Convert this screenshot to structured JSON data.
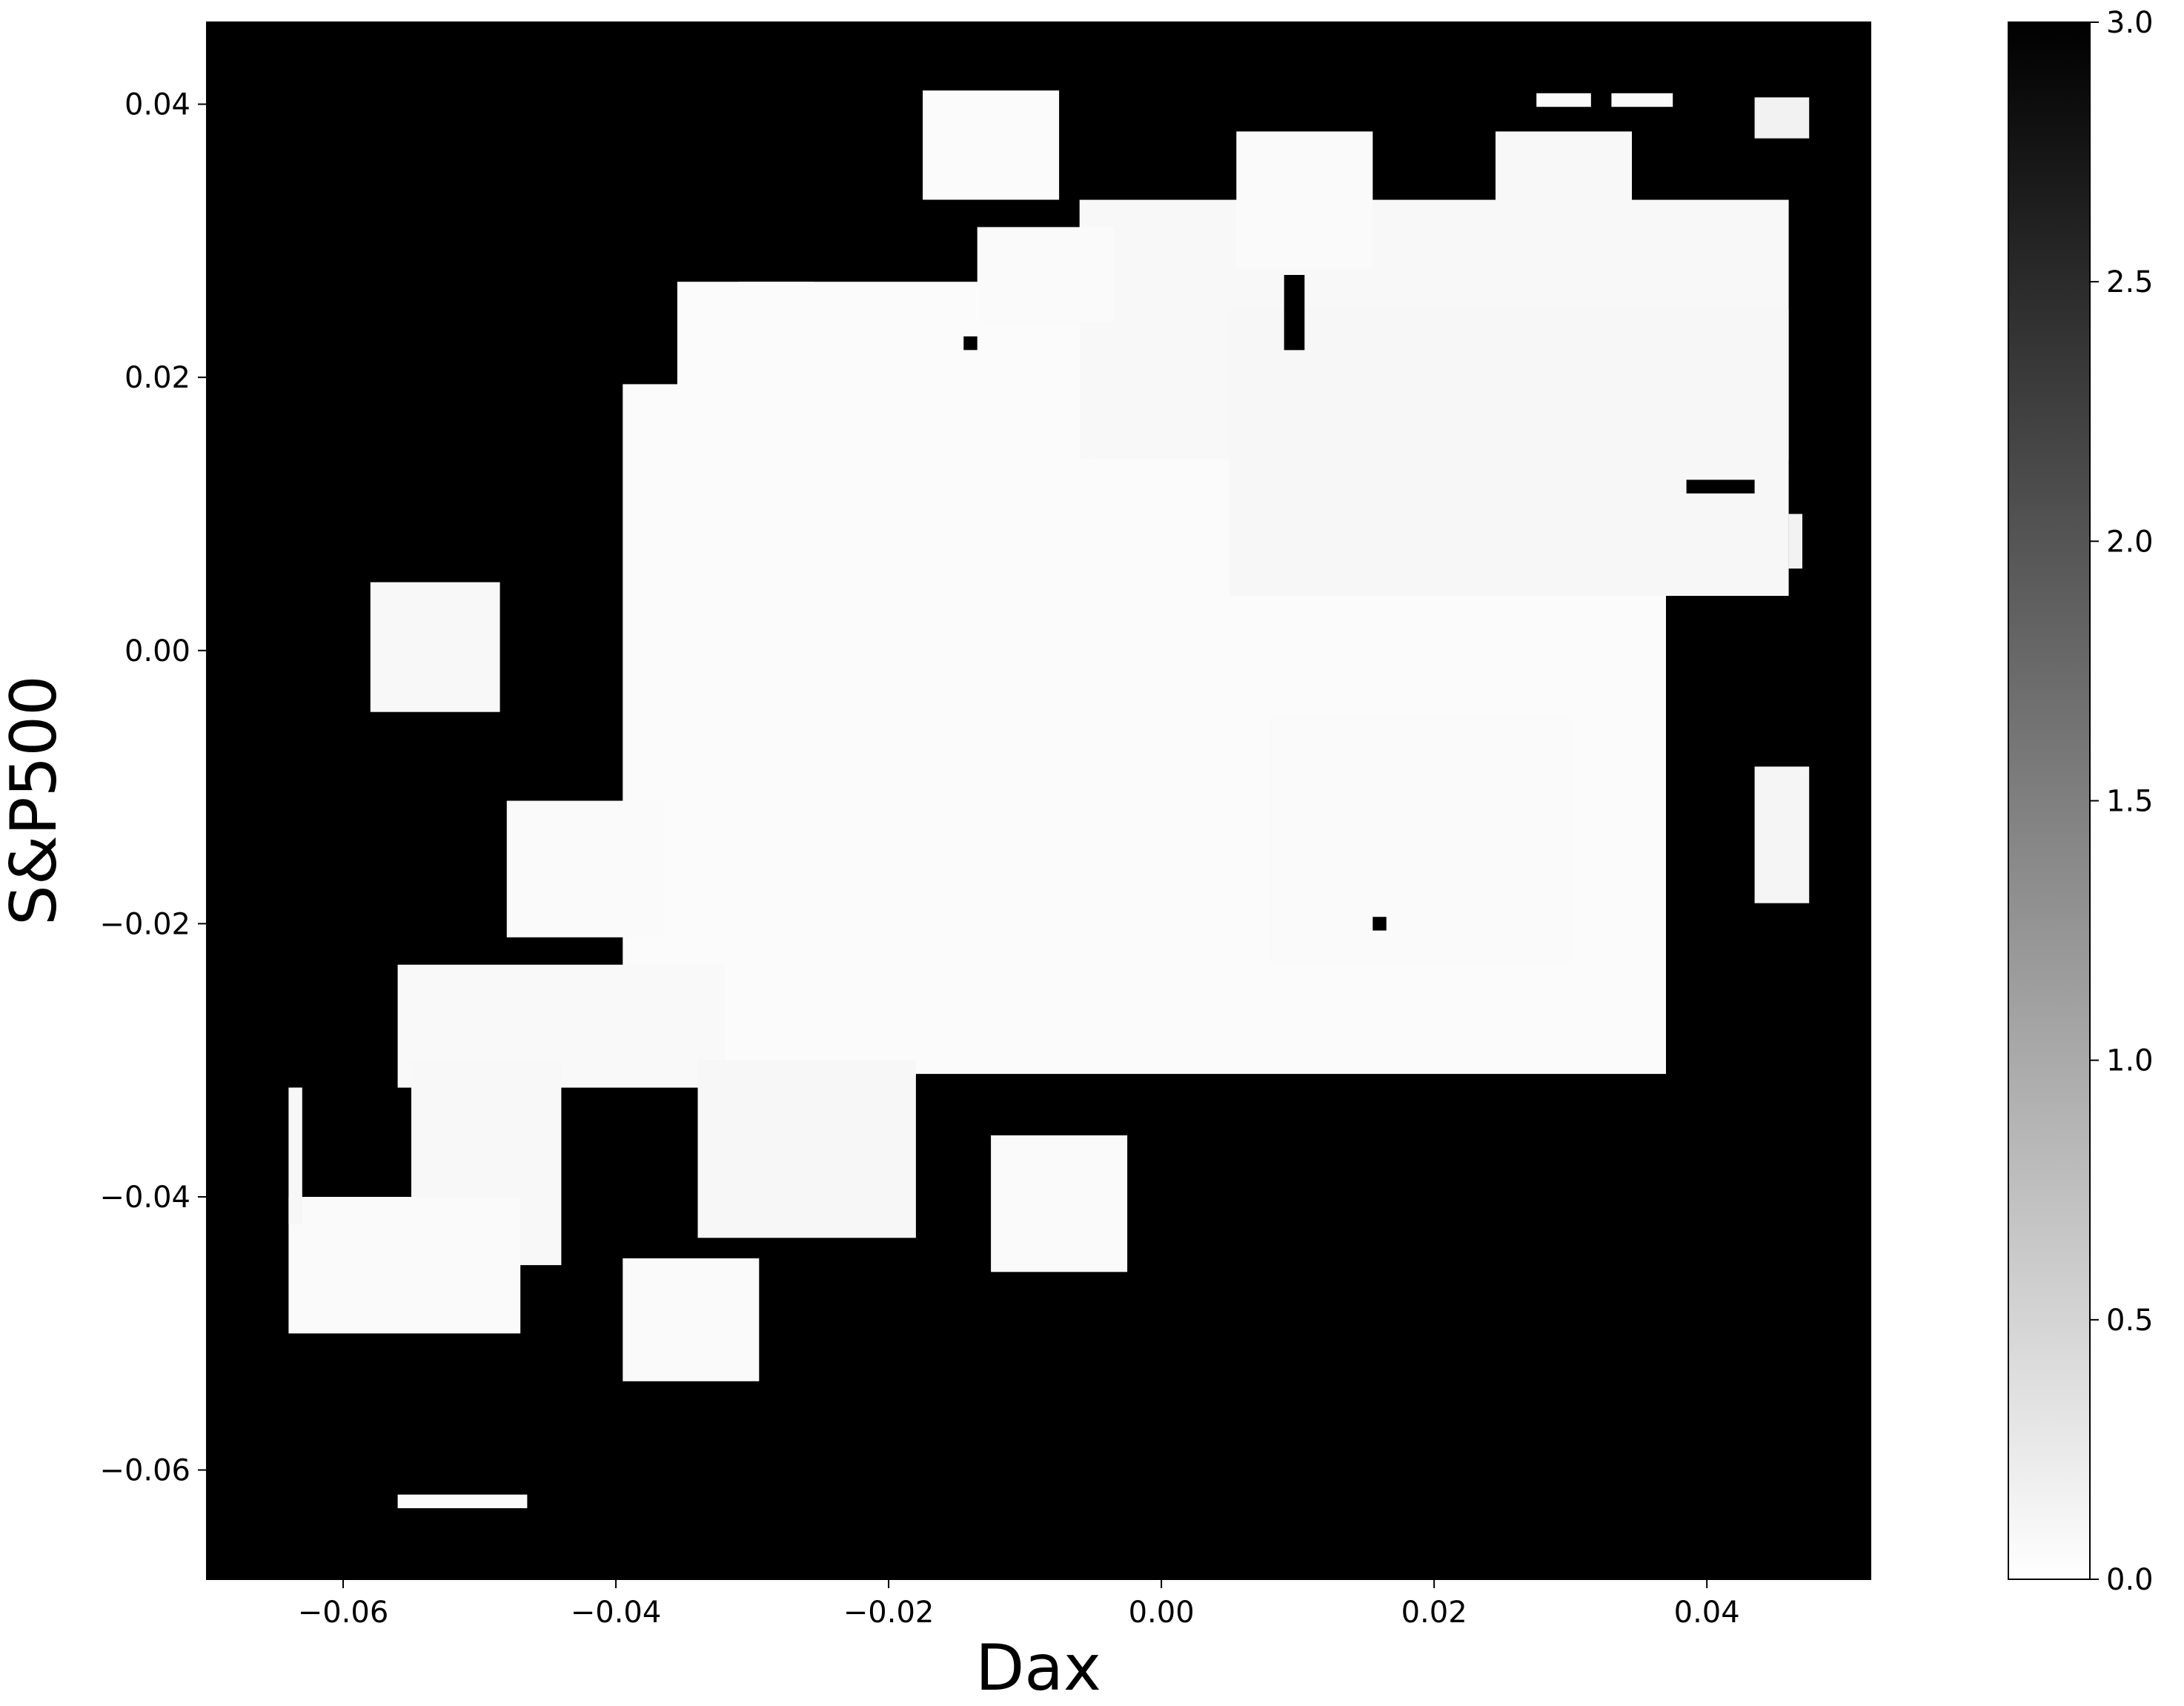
{
  "chart_data": {
    "type": "heatmap",
    "title": "",
    "xlabel": "Dax",
    "ylabel": "S&P500",
    "xlim": [
      -0.07,
      0.052
    ],
    "ylim": [
      -0.068,
      0.046
    ],
    "xticks": [
      -0.06,
      -0.04,
      -0.02,
      0.0,
      0.02,
      0.04
    ],
    "xtick_labels": [
      "−0.06",
      "−0.04",
      "−0.02",
      "0.00",
      "0.02",
      "0.04"
    ],
    "yticks": [
      -0.06,
      -0.04,
      -0.02,
      0.0,
      0.02,
      0.04
    ],
    "ytick_labels": [
      "−0.06",
      "−0.04",
      "−0.02",
      "0.00",
      "0.02",
      "0.04"
    ],
    "colormap": "gray_r",
    "background_color": "#000000",
    "colorbar": {
      "vmin": 0.0,
      "vmax": 3.0,
      "ticks": [
        0.0,
        0.5,
        1.0,
        1.5,
        2.0,
        2.5,
        3.0
      ],
      "tick_labels": [
        "0.0",
        "0.5",
        "1.0",
        "1.5",
        "2.0",
        "2.5",
        "3.0"
      ]
    },
    "regions": [
      {
        "x": [
          -0.0395,
          0.037
        ],
        "y": [
          -0.031,
          0.0195
        ],
        "value": 0.05
      },
      {
        "x": [
          -0.031,
          -0.005
        ],
        "y": [
          0.008,
          0.027
        ],
        "value": 0.05
      },
      {
        "x": [
          -0.006,
          0.046
        ],
        "y": [
          0.014,
          0.033
        ],
        "value": 0.08
      },
      {
        "x": [
          0.005,
          0.046
        ],
        "y": [
          0.004,
          0.025
        ],
        "value": 0.1
      },
      {
        "x": [
          0.008,
          0.03
        ],
        "y": [
          -0.023,
          -0.005
        ],
        "value": 0.06
      },
      {
        "x": [
          -0.048,
          -0.0365
        ],
        "y": [
          -0.021,
          -0.011
        ],
        "value": 0.06
      },
      {
        "x": [
          -0.056,
          -0.032
        ],
        "y": [
          -0.032,
          -0.023
        ],
        "value": 0.07
      },
      {
        "x": [
          -0.055,
          -0.044
        ],
        "y": [
          -0.045,
          -0.03
        ],
        "value": 0.08
      },
      {
        "x": [
          -0.064,
          -0.047
        ],
        "y": [
          -0.05,
          -0.04
        ],
        "value": 0.06
      },
      {
        "x": [
          -0.034,
          -0.018
        ],
        "y": [
          -0.043,
          -0.03
        ],
        "value": 0.09
      },
      {
        "x": [
          -0.058,
          -0.0485
        ],
        "y": [
          -0.0045,
          0.005
        ],
        "value": 0.08
      },
      {
        "x": [
          -0.0355,
          -0.0255
        ],
        "y": [
          0.017,
          0.027
        ],
        "value": 0.05
      },
      {
        "x": [
          -0.0175,
          -0.0075
        ],
        "y": [
          0.033,
          0.041
        ],
        "value": 0.05
      },
      {
        "x": [
          -0.0135,
          -0.0035
        ],
        "y": [
          0.024,
          0.031
        ],
        "value": 0.06
      },
      {
        "x": [
          0.0055,
          0.0155
        ],
        "y": [
          0.028,
          0.038
        ],
        "value": 0.06
      },
      {
        "x": [
          0.0245,
          0.0345
        ],
        "y": [
          0.03,
          0.038
        ],
        "value": 0.08
      },
      {
        "x": [
          -0.0125,
          -0.0025
        ],
        "y": [
          -0.0455,
          -0.0355
        ],
        "value": 0.06
      },
      {
        "x": [
          -0.0395,
          -0.0295
        ],
        "y": [
          -0.0535,
          -0.0445
        ],
        "value": 0.06
      },
      {
        "x": [
          0.0435,
          0.0475
        ],
        "y": [
          -0.0185,
          -0.0085
        ],
        "value": 0.12
      },
      {
        "x": [
          0.0435,
          0.0475
        ],
        "y": [
          0.0375,
          0.0405
        ],
        "value": 0.15
      },
      {
        "x": [
          0.0275,
          0.0315
        ],
        "y": [
          0.0398,
          0.0408
        ],
        "value": 0.05
      },
      {
        "x": [
          0.033,
          0.0375
        ],
        "y": [
          0.0398,
          0.0408
        ],
        "value": 0.05
      },
      {
        "x": [
          -0.056,
          -0.0465
        ],
        "y": [
          -0.0628,
          -0.0618
        ],
        "value": 0.05
      },
      {
        "x": [
          -0.064,
          -0.063
        ],
        "y": [
          -0.042,
          -0.032
        ],
        "value": 0.1
      },
      {
        "x": [
          0.046,
          0.047
        ],
        "y": [
          0.006,
          0.01
        ],
        "value": 0.15
      },
      {
        "x": [
          0.0155,
          0.0165
        ],
        "y": [
          -0.0205,
          -0.0195
        ],
        "value": 3.0
      },
      {
        "x": [
          0.009,
          0.0105
        ],
        "y": [
          0.022,
          0.0275
        ],
        "value": 3.0
      },
      {
        "x": [
          0.0385,
          0.0435
        ],
        "y": [
          0.0115,
          0.0125
        ],
        "value": 3.0
      },
      {
        "x": [
          -0.0145,
          -0.0135
        ],
        "y": [
          0.022,
          0.023
        ],
        "value": 3.0
      }
    ]
  }
}
